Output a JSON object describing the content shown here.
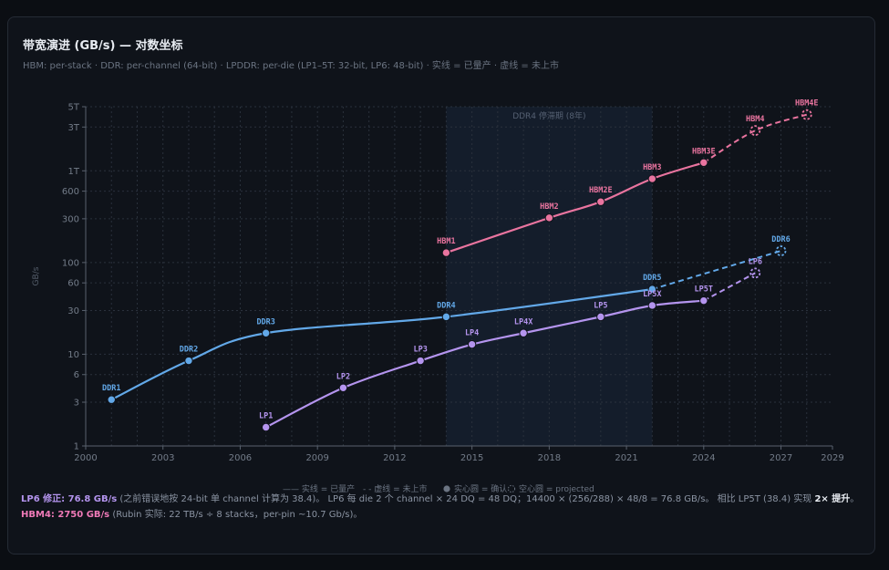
{
  "header": {
    "title": "带宽演进 (GB/s) — 对数坐标",
    "subtitle": "HBM: per-stack · DDR: per-channel (64-bit) · LPDDR: per-die (LP1–5T: 32-bit, LP6: 48-bit) · 实线 = 已量产 · 虚线 = 未上市"
  },
  "colors": {
    "ddr": "#62a8e8",
    "lp": "#b494ee",
    "hbm": "#e9749f",
    "band": "#172231"
  },
  "chart_data": {
    "type": "line",
    "xlabel": "",
    "ylabel": "GB/s",
    "yscale": "log",
    "xlim": [
      2000,
      2029
    ],
    "ylim": [
      1,
      5000
    ],
    "x_ticks": [
      2000,
      2003,
      2006,
      2009,
      2012,
      2015,
      2018,
      2021,
      2024,
      2027,
      2029
    ],
    "y_ticks": [
      {
        "v": 1,
        "label": "1"
      },
      {
        "v": 3,
        "label": "3"
      },
      {
        "v": 6,
        "label": "6"
      },
      {
        "v": 10,
        "label": "10"
      },
      {
        "v": 30,
        "label": "30"
      },
      {
        "v": 60,
        "label": "60"
      },
      {
        "v": 100,
        "label": "100"
      },
      {
        "v": 300,
        "label": "300"
      },
      {
        "v": 600,
        "label": "600"
      },
      {
        "v": 1000,
        "label": "1T"
      },
      {
        "v": 3000,
        "label": "3T"
      },
      {
        "v": 5000,
        "label": "5T"
      }
    ],
    "grid": true,
    "shaded_region": {
      "x": [
        2014,
        2022
      ],
      "label": "DDR4 停滞期 (8年)"
    },
    "series": [
      {
        "key": "ddr",
        "points": [
          {
            "x": 2001,
            "y": 3.2,
            "label": "DDR1",
            "status": "confirmed"
          },
          {
            "x": 2004,
            "y": 8.5,
            "label": "DDR2",
            "status": "confirmed"
          },
          {
            "x": 2007,
            "y": 17,
            "label": "DDR3",
            "status": "confirmed"
          },
          {
            "x": 2014,
            "y": 25.6,
            "label": "DDR4",
            "status": "confirmed"
          },
          {
            "x": 2022,
            "y": 51.2,
            "label": "DDR5",
            "status": "confirmed"
          },
          {
            "x": 2027,
            "y": 134,
            "label": "DDR6",
            "status": "projected"
          }
        ]
      },
      {
        "key": "lp",
        "points": [
          {
            "x": 2007,
            "y": 1.6,
            "label": "LP1",
            "status": "confirmed"
          },
          {
            "x": 2010,
            "y": 4.3,
            "label": "LP2",
            "status": "confirmed"
          },
          {
            "x": 2013,
            "y": 8.5,
            "label": "LP3",
            "status": "confirmed"
          },
          {
            "x": 2015,
            "y": 12.8,
            "label": "LP4",
            "status": "confirmed"
          },
          {
            "x": 2017,
            "y": 17,
            "label": "LP4X",
            "status": "confirmed"
          },
          {
            "x": 2020,
            "y": 25.6,
            "label": "LP5",
            "status": "confirmed"
          },
          {
            "x": 2022,
            "y": 34,
            "label": "LP5X",
            "status": "confirmed"
          },
          {
            "x": 2024,
            "y": 38.4,
            "label": "LP5T",
            "status": "confirmed"
          },
          {
            "x": 2026,
            "y": 76.8,
            "label": "LP6",
            "status": "projected"
          }
        ]
      },
      {
        "key": "hbm",
        "points": [
          {
            "x": 2014,
            "y": 128,
            "label": "HBM1",
            "status": "confirmed"
          },
          {
            "x": 2018,
            "y": 307,
            "label": "HBM2",
            "status": "confirmed"
          },
          {
            "x": 2020,
            "y": 460,
            "label": "HBM2E",
            "status": "confirmed"
          },
          {
            "x": 2022,
            "y": 819,
            "label": "HBM3",
            "status": "confirmed"
          },
          {
            "x": 2024,
            "y": 1229,
            "label": "HBM3E",
            "status": "confirmed"
          },
          {
            "x": 2026,
            "y": 2750,
            "label": "HBM4",
            "status": "projected"
          },
          {
            "x": 2028,
            "y": 4096,
            "label": "HBM4E",
            "status": "projected"
          }
        ]
      }
    ],
    "legend": [
      {
        "label": "—— 实线 = 已量产"
      },
      {
        "label": "- - 虚线 = 未上市"
      },
      {
        "label": "实心圆 = 确认"
      },
      {
        "label": "空心圆 = projected"
      }
    ]
  },
  "notes": {
    "lp6_label": "LP6 修正: 76.8 GB/s",
    "lp6_text_a": " (之前错误地按 24-bit 单 channel 计算为 38.4)。 LP6 每 die 2 个 channel × 24 DQ = 48 DQ；14400 × (256/288) × 48/8 = 76.8 GB/s。 相比 LP5T (38.4) 实现 ",
    "lp6_strong": "2× 提升",
    "lp6_text_b": "。",
    "hbm4_label": "HBM4: 2750 GB/s",
    "hbm4_text": " (Rubin 实际: 22 TB/s ÷ 8 stacks，per-pin ~10.7 Gb/s)。"
  }
}
